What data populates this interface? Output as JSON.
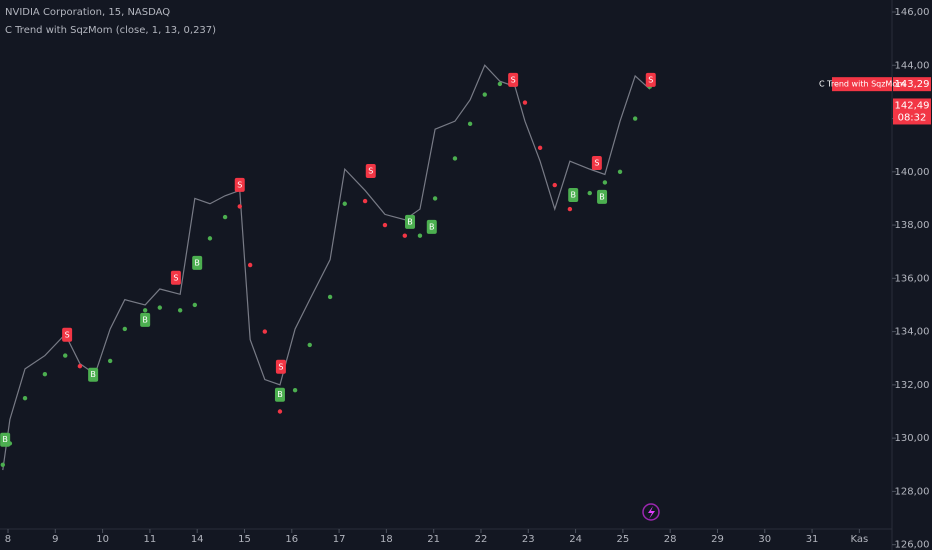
{
  "chart_data": {
    "type": "line",
    "title": "NVIDIA Corporation, 15, NASDAQ",
    "subtitle": "C Trend with SqzMom (close, 1, 13, 0,237)",
    "x": [
      -0.11,
      0.04,
      0.36,
      0.78,
      1.21,
      1.52,
      1.84,
      2.16,
      2.47,
      2.9,
      3.21,
      3.64,
      3.95,
      4.27,
      4.59,
      4.9,
      5.12,
      5.43,
      5.75,
      6.07,
      6.38,
      6.81,
      7.12,
      7.55,
      7.97,
      8.39,
      8.71,
      9.03,
      9.45,
      9.77,
      10.08,
      10.4,
      10.72,
      10.93,
      11.25,
      11.56,
      11.88,
      12.3,
      12.62,
      12.94,
      13.26,
      13.57
    ],
    "series": [
      {
        "name": "close",
        "color": "#787b86",
        "values": [
          128.8,
          130.7,
          132.6,
          133.1,
          133.9,
          132.8,
          132.4,
          134.1,
          135.2,
          135.0,
          135.6,
          135.4,
          139.0,
          138.8,
          139.1,
          139.3,
          133.7,
          132.2,
          132.0,
          134.1,
          135.2,
          136.7,
          140.1,
          139.3,
          138.4,
          138.2,
          138.6,
          141.6,
          141.9,
          142.7,
          144.0,
          143.4,
          143.2,
          141.9,
          140.4,
          138.6,
          140.4,
          140.1,
          139.9,
          141.9,
          143.6,
          143.1
        ]
      },
      {
        "name": "C Trend with SqzMom",
        "up_color": "#4caf50",
        "down_color": "#f23645",
        "values": [
          129.0,
          129.8,
          131.5,
          132.4,
          133.1,
          132.7,
          132.3,
          132.9,
          134.1,
          134.8,
          134.9,
          134.8,
          135.0,
          137.5,
          138.3,
          138.7,
          136.5,
          134.0,
          131.0,
          131.8,
          133.5,
          135.3,
          138.8,
          138.9,
          138.0,
          137.6,
          137.6,
          139.0,
          140.5,
          141.8,
          142.9,
          143.3,
          143.4,
          142.6,
          140.9,
          139.5,
          138.6,
          139.2,
          139.6,
          140.0,
          142.0,
          143.2
        ]
      }
    ],
    "signals": [
      {
        "label": "B",
        "x": -0.06,
        "value": 129.94
      },
      {
        "label": "S",
        "x": 1.25,
        "value": 133.88
      },
      {
        "label": "B",
        "x": 1.8,
        "value": 132.38
      },
      {
        "label": "B",
        "x": 2.9,
        "value": 134.44
      },
      {
        "label": "S",
        "x": 3.55,
        "value": 136.02
      },
      {
        "label": "B",
        "x": 4.0,
        "value": 136.58
      },
      {
        "label": "S",
        "x": 4.9,
        "value": 139.51
      },
      {
        "label": "S",
        "x": 5.77,
        "value": 132.68
      },
      {
        "label": "B",
        "x": 5.75,
        "value": 131.63
      },
      {
        "label": "S",
        "x": 7.67,
        "value": 140.03
      },
      {
        "label": "B",
        "x": 8.5,
        "value": 138.12
      },
      {
        "label": "B",
        "x": 8.96,
        "value": 137.93
      },
      {
        "label": "S",
        "x": 10.68,
        "value": 143.45
      },
      {
        "label": "B",
        "x": 11.95,
        "value": 139.13
      },
      {
        "label": "S",
        "x": 12.45,
        "value": 140.33
      },
      {
        "label": "B",
        "x": 12.56,
        "value": 139.06
      },
      {
        "label": "S",
        "x": 13.59,
        "value": 143.45
      }
    ],
    "price_labels": [
      {
        "name": "C Trend with SqzMom",
        "value": 143.29,
        "label": "143,29"
      },
      {
        "value": 142.49,
        "label": "142,49",
        "time": "08:32"
      }
    ],
    "xlim": [
      -0.169,
      18.69
    ],
    "xticks": [
      {
        "value": 0,
        "label": "8"
      },
      {
        "value": 1,
        "label": "9"
      },
      {
        "value": 2,
        "label": "10"
      },
      {
        "value": 3,
        "label": "11"
      },
      {
        "value": 4,
        "label": "14"
      },
      {
        "value": 5,
        "label": "15"
      },
      {
        "value": 6,
        "label": "16"
      },
      {
        "value": 7,
        "label": "17"
      },
      {
        "value": 8,
        "label": "18"
      },
      {
        "value": 9,
        "label": "21"
      },
      {
        "value": 10,
        "label": "22"
      },
      {
        "value": 11,
        "label": "23"
      },
      {
        "value": 12,
        "label": "24"
      },
      {
        "value": 13,
        "label": "25"
      },
      {
        "value": 14,
        "label": "28"
      },
      {
        "value": 15,
        "label": "29"
      },
      {
        "value": 16,
        "label": "30"
      },
      {
        "value": 17,
        "label": "31"
      },
      {
        "value": 18,
        "label": "Kas"
      }
    ],
    "ylim": [
      125.8,
      146.45
    ],
    "yticks": [
      {
        "value": 126,
        "label": "126,00"
      },
      {
        "value": 128,
        "label": "128,00"
      },
      {
        "value": 130,
        "label": "130,00"
      },
      {
        "value": 132,
        "label": "132,00"
      },
      {
        "value": 134,
        "label": "134,00"
      },
      {
        "value": 136,
        "label": "136,00"
      },
      {
        "value": 138,
        "label": "138,00"
      },
      {
        "value": 140,
        "label": "140,00"
      },
      {
        "value": 142,
        "label": "142,00"
      },
      {
        "value": 144,
        "label": "144,00"
      },
      {
        "value": 146,
        "label": "146,00"
      }
    ]
  }
}
